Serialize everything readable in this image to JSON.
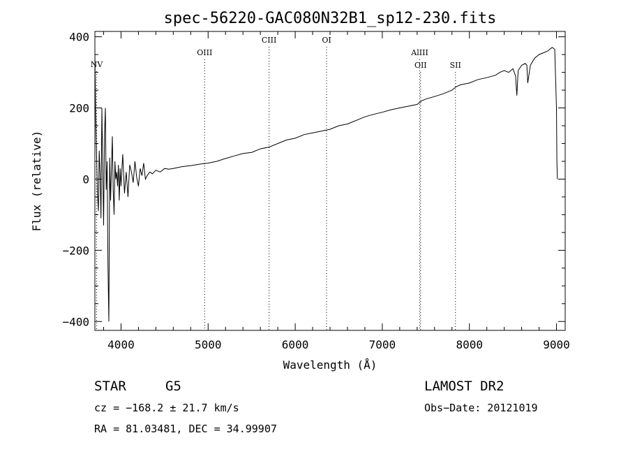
{
  "chart_data": {
    "type": "line",
    "title": "spec-56220-GAC080N32B1_sp12-230.fits",
    "xlabel": "Wavelength (Å)",
    "ylabel": "Flux (relative)",
    "xlim": [
      3700,
      9100
    ],
    "ylim": [
      -425,
      415
    ],
    "x_ticks": [
      4000,
      5000,
      6000,
      7000,
      8000,
      9000
    ],
    "y_ticks": [
      -400,
      -200,
      0,
      200,
      400
    ],
    "grid": false,
    "series": [
      {
        "x": [
          3700,
          3710,
          3720,
          3730,
          3740,
          3750,
          3760,
          3770,
          3780,
          3790,
          3800,
          3810,
          3820,
          3830,
          3840,
          3850,
          3860,
          3870,
          3880,
          3890,
          3900,
          3910,
          3920,
          3930,
          3940,
          3950,
          3960,
          3970,
          3980,
          3990,
          4000,
          4020,
          4040,
          4060,
          4080,
          4100,
          4120,
          4140,
          4160,
          4180,
          4200,
          4220,
          4240,
          4260,
          4280,
          4300,
          4330,
          4360,
          4400,
          4450,
          4500,
          4550,
          4600,
          4700,
          4800,
          4900,
          5000,
          5100,
          5200,
          5300,
          5400,
          5500,
          5600,
          5700,
          5800,
          5900,
          6000,
          6100,
          6200,
          6300,
          6400,
          6500,
          6600,
          6700,
          6800,
          6900,
          7000,
          7100,
          7200,
          7300,
          7400,
          7450,
          7500,
          7600,
          7700,
          7800,
          7850,
          7900,
          8000,
          8100,
          8200,
          8300,
          8350,
          8400,
          8450,
          8500,
          8530,
          8545,
          8560,
          8600,
          8640,
          8660,
          8670,
          8700,
          8750,
          8800,
          8850,
          8900,
          8950,
          8980,
          9000,
          9005,
          9010
        ],
        "y": [
          350,
          170,
          60,
          -40,
          -90,
          80,
          10,
          -110,
          200,
          40,
          -130,
          120,
          200,
          -30,
          50,
          -240,
          -400,
          60,
          -60,
          30,
          120,
          -30,
          -100,
          50,
          0,
          20,
          -20,
          40,
          -60,
          30,
          -20,
          70,
          -40,
          20,
          -50,
          40,
          20,
          -10,
          50,
          5,
          -20,
          30,
          10,
          45,
          0,
          10,
          20,
          15,
          25,
          20,
          30,
          28,
          30,
          35,
          38,
          42,
          45,
          50,
          58,
          65,
          72,
          75,
          85,
          90,
          100,
          110,
          115,
          125,
          130,
          135,
          140,
          150,
          155,
          165,
          175,
          182,
          188,
          195,
          200,
          205,
          210,
          220,
          225,
          232,
          240,
          250,
          260,
          265,
          270,
          280,
          285,
          292,
          300,
          305,
          300,
          310,
          290,
          235,
          305,
          320,
          325,
          320,
          270,
          320,
          340,
          350,
          355,
          360,
          370,
          365,
          200,
          50,
          0
        ]
      }
    ],
    "line_markers": [
      {
        "label": "NV",
        "wavelength": 3720,
        "row": 3
      },
      {
        "label": "OIII",
        "wavelength": 4960,
        "row": 1
      },
      {
        "label": "CIII",
        "wavelength": 5700,
        "row": 0
      },
      {
        "label": "OI",
        "wavelength": 6360,
        "row": 0
      },
      {
        "label": "AlIII",
        "wavelength": 7430,
        "row": 1
      },
      {
        "label": "OII",
        "wavelength": 7440,
        "row": 2
      },
      {
        "label": "SII",
        "wavelength": 7840,
        "row": 2
      }
    ]
  },
  "info": {
    "object_class": "STAR",
    "subclass": "G5",
    "survey": "LAMOST DR2",
    "cz": "cz = −168.2 ± 21.7 km/s",
    "obs_date": "Obs−Date: 20121019",
    "coords": "RA =  81.03481, DEC =  34.99907"
  }
}
